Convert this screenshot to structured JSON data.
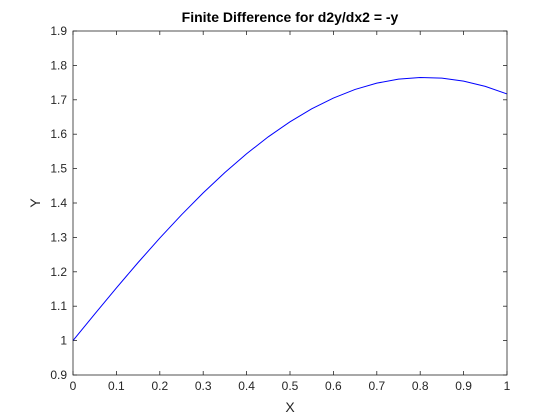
{
  "chart_data": {
    "type": "line",
    "title": "Finite Difference for d2y/dx2 = -y",
    "xlabel": "X",
    "ylabel": "Y",
    "xlim": [
      0,
      1
    ],
    "ylim": [
      0.9,
      1.9
    ],
    "xticks": [
      0,
      0.1,
      0.2,
      0.3,
      0.4,
      0.5,
      0.6,
      0.7,
      0.8,
      0.9,
      1
    ],
    "xtick_labels": [
      "0",
      "0.1",
      "0.2",
      "0.3",
      "0.4",
      "0.5",
      "0.6",
      "0.7",
      "0.8",
      "0.9",
      "1"
    ],
    "yticks": [
      0.9,
      1,
      1.1,
      1.2,
      1.3,
      1.4,
      1.5,
      1.6,
      1.7,
      1.8,
      1.9
    ],
    "ytick_labels": [
      "0.9",
      "1",
      "1.1",
      "1.2",
      "1.3",
      "1.4",
      "1.5",
      "1.6",
      "1.7",
      "1.8",
      "1.9"
    ],
    "grid": false,
    "box": true,
    "line_color": "#0000ff",
    "series": [
      {
        "x": [
          0,
          0.05,
          0.1,
          0.15,
          0.2,
          0.25,
          0.3,
          0.35,
          0.4,
          0.45,
          0.5,
          0.55,
          0.6,
          0.65,
          0.7,
          0.75,
          0.8,
          0.85,
          0.9,
          0.95,
          1
        ],
        "values": [
          1.0,
          1.0773,
          1.1532,
          1.227,
          1.298,
          1.3656,
          1.4294,
          1.4887,
          1.5432,
          1.5925,
          1.6361,
          1.6737,
          1.7051,
          1.7301,
          1.7484,
          1.7601,
          1.765,
          1.7631,
          1.7544,
          1.739,
          1.717
        ]
      }
    ]
  }
}
